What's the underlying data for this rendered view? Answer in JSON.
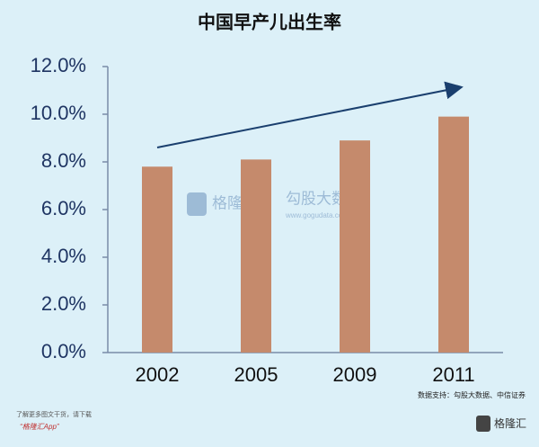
{
  "chart_data": {
    "type": "bar",
    "title": "中国早产儿出生率",
    "categories": [
      "2002",
      "2005",
      "2009",
      "2011"
    ],
    "values": [
      7.8,
      8.1,
      8.9,
      9.9
    ],
    "color": "#c58a6c",
    "ylim": [
      0,
      12
    ],
    "yticks": [
      {
        "value": 0,
        "label": "0.0%"
      },
      {
        "value": 2,
        "label": "2.0%"
      },
      {
        "value": 4,
        "label": "4.0%"
      },
      {
        "value": 6,
        "label": "6.0%"
      },
      {
        "value": 8,
        "label": "8.0%"
      },
      {
        "value": 10,
        "label": "10.0%"
      },
      {
        "value": 12,
        "label": "12.0%"
      }
    ],
    "grid": false,
    "source": "数据支持：勾股大数据、中信证券",
    "watermark": {
      "brand": "格隆汇",
      "name": "勾股大数据",
      "url": "www.gogudata.com"
    },
    "footer": {
      "line1": "了解更多图文干货，请下载",
      "line2": "“格隆汇App”",
      "logo": "格隆汇"
    }
  }
}
